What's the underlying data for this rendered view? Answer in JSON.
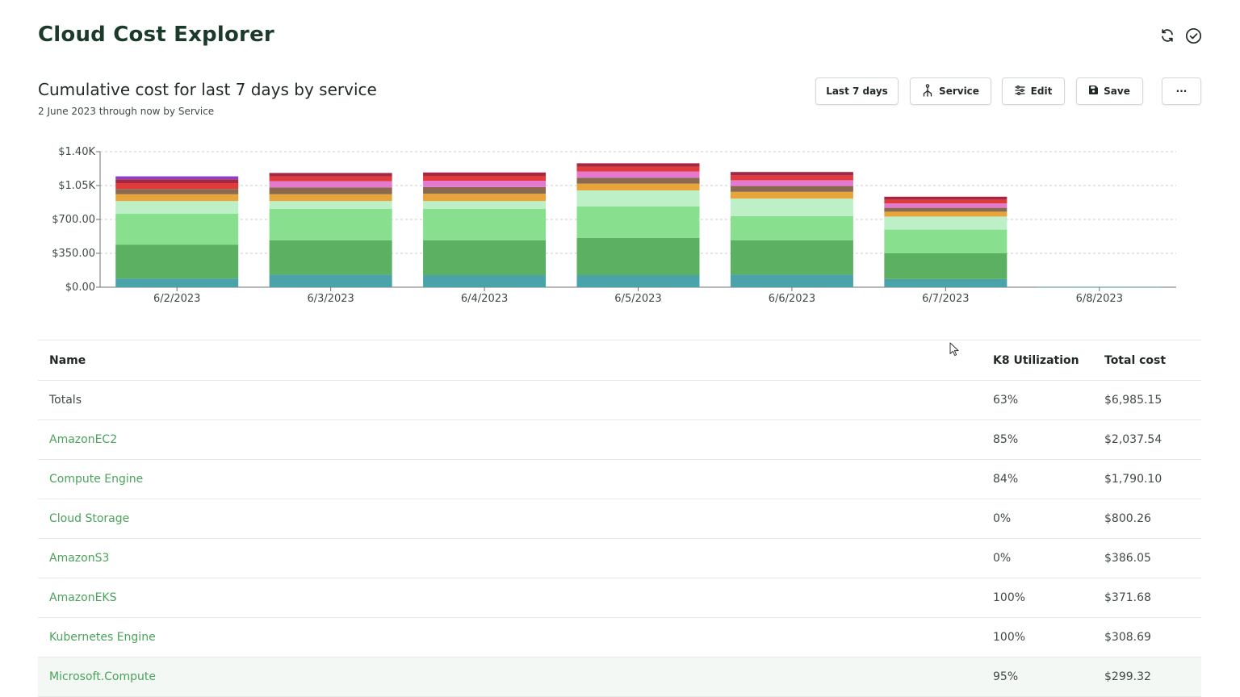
{
  "app": {
    "title": "Cloud Cost Explorer"
  },
  "header_icons": [
    "refresh-icon",
    "check-circle-icon"
  ],
  "report": {
    "title": "Cumulative cost for last 7 days by service",
    "subtitle": "2 June 2023 through now by Service"
  },
  "toolbar": {
    "range_label": "Last 7 days",
    "aggregate_label": "Service",
    "edit_label": "Edit",
    "save_label": "Save",
    "more_label": "···"
  },
  "colors": {
    "accent": "#4aa35a",
    "title": "#1b3a2a"
  },
  "chart_data": {
    "type": "bar",
    "stacked": true,
    "categories": [
      "6/2/2023",
      "6/3/2023",
      "6/4/2023",
      "6/5/2023",
      "6/6/2023",
      "6/7/2023",
      "6/8/2023"
    ],
    "y_ticks": [
      "$0.00",
      "$350.00",
      "$700.00",
      "$1.05K",
      "$1.40K"
    ],
    "ylim": [
      0,
      1400
    ],
    "grid": true,
    "series": [
      {
        "color": "#4aa3a8",
        "values": [
          90,
          130,
          125,
          125,
          130,
          85,
          2
        ]
      },
      {
        "color": "#5bb061",
        "values": [
          350,
          355,
          360,
          385,
          355,
          265,
          0
        ]
      },
      {
        "color": "#88e08f",
        "values": [
          320,
          325,
          325,
          325,
          250,
          245,
          0
        ]
      },
      {
        "color": "#bdf0c6",
        "values": [
          130,
          80,
          80,
          165,
          180,
          135,
          0
        ]
      },
      {
        "color": "#e8a33a",
        "values": [
          70,
          70,
          75,
          70,
          70,
          50,
          0
        ]
      },
      {
        "color": "#8a6a4e",
        "values": [
          55,
          70,
          70,
          60,
          60,
          40,
          0
        ]
      },
      {
        "color": "#e37ad0",
        "values": [
          0,
          65,
          65,
          65,
          60,
          45,
          0
        ]
      },
      {
        "color": "#e03a3a",
        "values": [
          60,
          50,
          50,
          50,
          50,
          40,
          0
        ]
      },
      {
        "color": "#a32844",
        "values": [
          40,
          35,
          35,
          35,
          35,
          30,
          0
        ]
      },
      {
        "color": "#8b3ec9",
        "values": [
          30,
          0,
          0,
          0,
          0,
          0,
          0
        ]
      }
    ]
  },
  "table": {
    "columns": [
      "Name",
      "K8 Utilization",
      "Total cost"
    ],
    "totals": {
      "name": "Totals",
      "util": "63%",
      "cost": "$6,985.15"
    },
    "rows": [
      {
        "name": "AmazonEC2",
        "util": "85%",
        "cost": "$2,037.54"
      },
      {
        "name": "Compute Engine",
        "util": "84%",
        "cost": "$1,790.10"
      },
      {
        "name": "Cloud Storage",
        "util": "0%",
        "cost": "$800.26"
      },
      {
        "name": "AmazonS3",
        "util": "0%",
        "cost": "$386.05"
      },
      {
        "name": "AmazonEKS",
        "util": "100%",
        "cost": "$371.68"
      },
      {
        "name": "Kubernetes Engine",
        "util": "100%",
        "cost": "$308.69"
      },
      {
        "name": "Microsoft.Compute",
        "util": "95%",
        "cost": "$299.32"
      }
    ]
  }
}
